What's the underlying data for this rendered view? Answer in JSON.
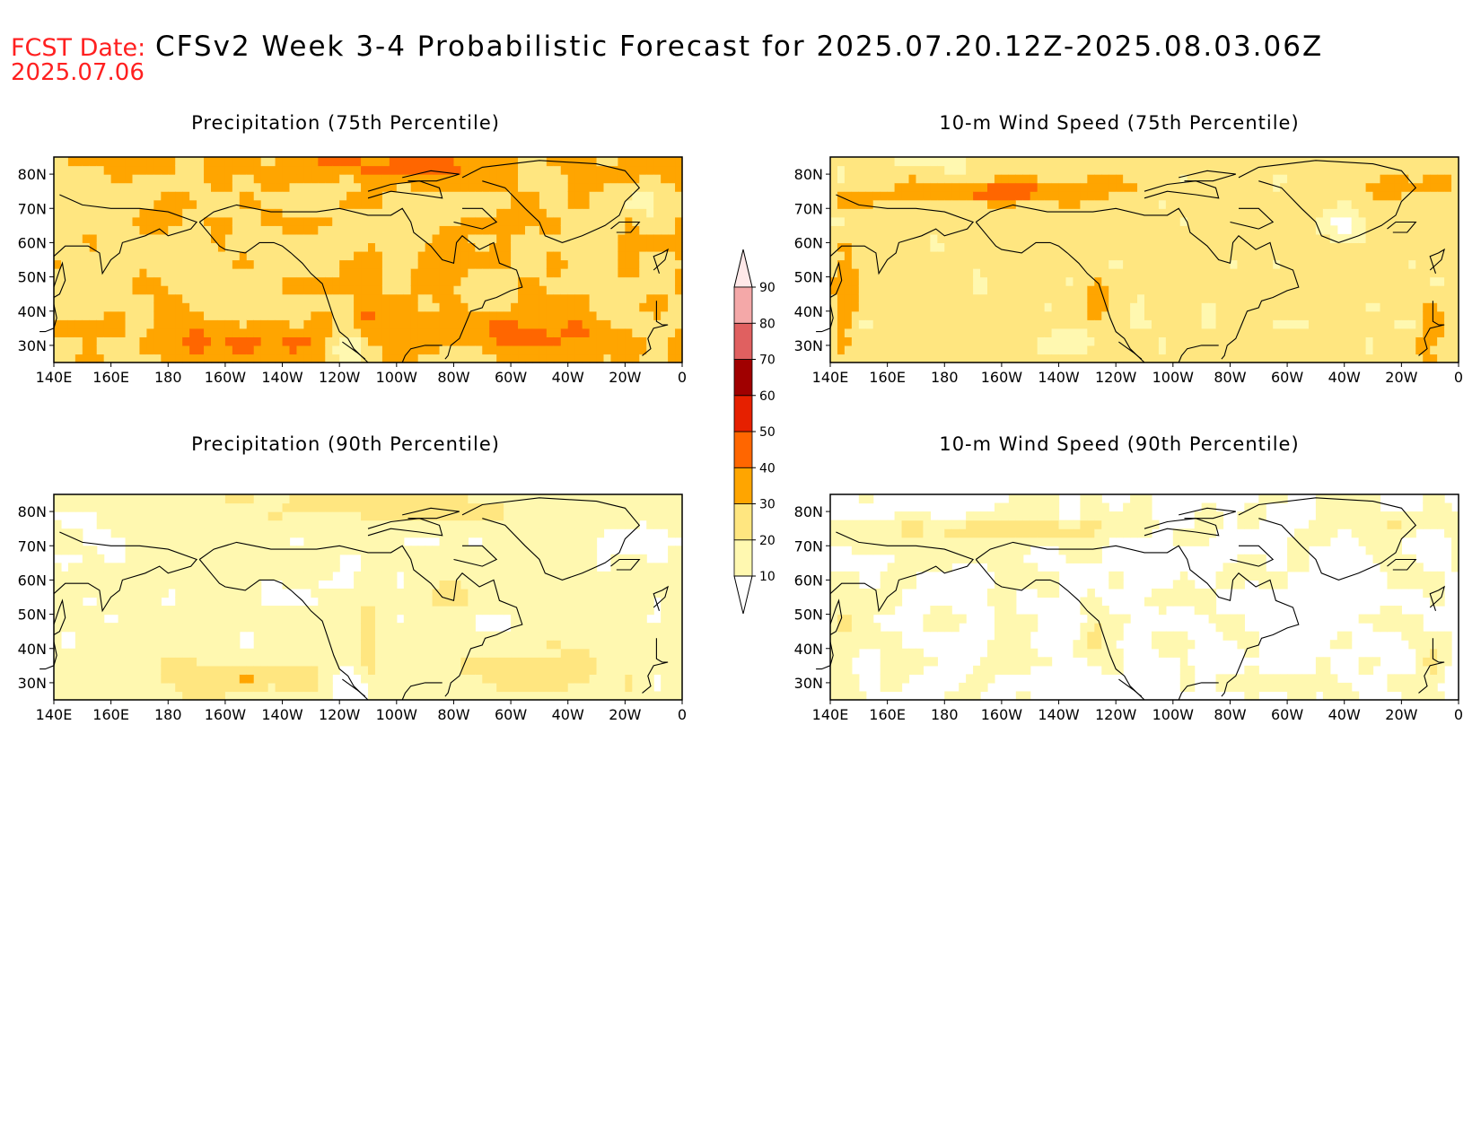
{
  "header": {
    "fcst_label": "FCST Date:",
    "fcst_value": "2025.07.06",
    "title": "CFSv2 Week 3-4 Probabilistic Forecast for 2025.07.20.12Z-2025.08.03.06Z"
  },
  "panels": [
    {
      "id": "precip75",
      "title": "Precipitation (75th Percentile)",
      "field": "precip",
      "level": 75
    },
    {
      "id": "wind75",
      "title": "10-m Wind Speed (75th Percentile)",
      "field": "wind",
      "level": 75
    },
    {
      "id": "precip90",
      "title": "Precipitation (90th Percentile)",
      "field": "precip",
      "level": 90
    },
    {
      "id": "wind90",
      "title": "10-m Wind Speed (90th Percentile)",
      "field": "wind",
      "level": 90
    }
  ],
  "map": {
    "lon_range": [
      140,
      360
    ],
    "lat_range": [
      25,
      85
    ],
    "lon_ticks": [
      "140E",
      "160E",
      "180",
      "160W",
      "140W",
      "120W",
      "100W",
      "80W",
      "60W",
      "40W",
      "20W",
      "0"
    ],
    "lat_ticks": [
      "80N",
      "70N",
      "60N",
      "50N",
      "40N",
      "30N"
    ]
  },
  "colorbar": {
    "levels": [
      "10",
      "20",
      "30",
      "40",
      "50",
      "60",
      "70",
      "80",
      "90"
    ],
    "colors": [
      "#ffffff",
      "#fff8b0",
      "#ffe680",
      "#ffa500",
      "#ff6600",
      "#e62000",
      "#a00000",
      "#e06060",
      "#f4a8a8",
      "#ffe8e8"
    ]
  }
}
